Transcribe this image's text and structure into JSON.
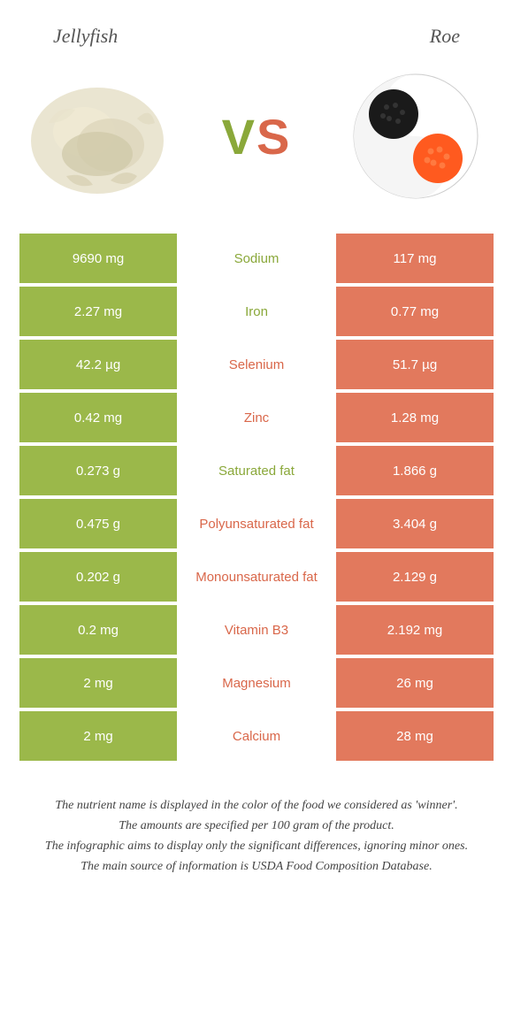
{
  "header": {
    "left": "Jellyfish",
    "right": "Roe"
  },
  "vs": {
    "v": "V",
    "s": "S"
  },
  "colors": {
    "green": "#9bb84a",
    "orange": "#e2795d",
    "green_text": "#8aa83a",
    "orange_text": "#d9674a"
  },
  "rows": [
    {
      "left": "9690 mg",
      "mid": "Sodium",
      "right": "117 mg",
      "winner": "green"
    },
    {
      "left": "2.27 mg",
      "mid": "Iron",
      "right": "0.77 mg",
      "winner": "green"
    },
    {
      "left": "42.2 µg",
      "mid": "Selenium",
      "right": "51.7 µg",
      "winner": "orange"
    },
    {
      "left": "0.42 mg",
      "mid": "Zinc",
      "right": "1.28 mg",
      "winner": "orange"
    },
    {
      "left": "0.273 g",
      "mid": "Saturated fat",
      "right": "1.866 g",
      "winner": "green"
    },
    {
      "left": "0.475 g",
      "mid": "Polyunsaturated fat",
      "right": "3.404 g",
      "winner": "orange"
    },
    {
      "left": "0.202 g",
      "mid": "Monounsaturated fat",
      "right": "2.129 g",
      "winner": "orange"
    },
    {
      "left": "0.2 mg",
      "mid": "Vitamin B3",
      "right": "2.192 mg",
      "winner": "orange"
    },
    {
      "left": "2 mg",
      "mid": "Magnesium",
      "right": "26 mg",
      "winner": "orange"
    },
    {
      "left": "2 mg",
      "mid": "Calcium",
      "right": "28 mg",
      "winner": "orange"
    }
  ],
  "footer": {
    "l1": "The nutrient name is displayed in the color of the food we considered as 'winner'.",
    "l2": "The amounts are specified per 100 gram of the product.",
    "l3": "The infographic aims to display only the significant differences, ignoring minor ones.",
    "l4": "The main source of information is USDA Food Composition Database."
  }
}
